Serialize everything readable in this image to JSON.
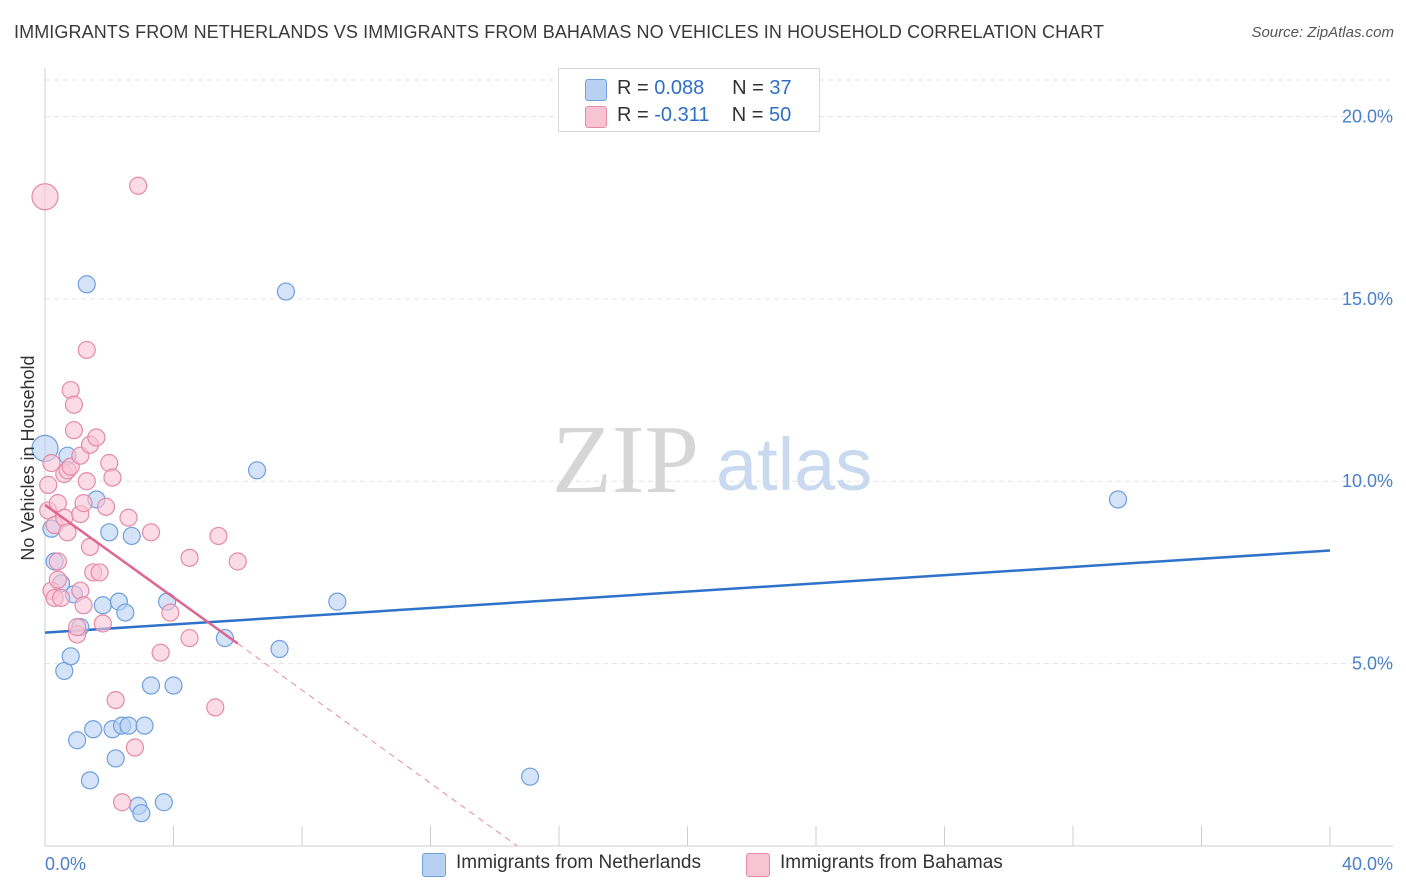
{
  "title": "IMMIGRANTS FROM NETHERLANDS VS IMMIGRANTS FROM BAHAMAS NO VEHICLES IN HOUSEHOLD CORRELATION CHART",
  "source": "Source: ZipAtlas.com",
  "watermark": {
    "zip": "ZIP",
    "atlas": "atlas"
  },
  "legend": {
    "r_label": "R =",
    "n_label": "N =",
    "series": [
      {
        "r": "0.088",
        "n": "37"
      },
      {
        "r": "-0.311",
        "n": "50"
      }
    ]
  },
  "colors": {
    "netherlands_fill": "#b8d1f3",
    "netherlands_stroke": "#6f9fdd",
    "netherlands_line": "#2f72c9",
    "bahamas_fill": "#f8c3d3",
    "bahamas_stroke": "#e58aa8",
    "bahamas_line": "#e0668f",
    "tick_text": "#4a7fc9"
  },
  "chart_data": {
    "type": "scatter",
    "title": "IMMIGRANTS FROM NETHERLANDS VS IMMIGRANTS FROM BAHAMAS NO VEHICLES IN HOUSEHOLD CORRELATION CHART",
    "xlabel": "",
    "ylabel": "No Vehicles in Household",
    "xlim": [
      0,
      40
    ],
    "ylim": [
      0,
      20
    ],
    "x_tick_labels": [
      "0.0%",
      "40.0%"
    ],
    "y_ticks": [
      5,
      10,
      15,
      20
    ],
    "y_tick_labels": [
      "5.0%",
      "10.0%",
      "15.0%",
      "20.0%"
    ],
    "grid": true,
    "legend_position": "top-center",
    "series": [
      {
        "name": "Immigrants from Netherlands",
        "points": [
          [
            0.0,
            10.9
          ],
          [
            0.2,
            8.7
          ],
          [
            0.3,
            7.8
          ],
          [
            0.5,
            7.2
          ],
          [
            0.6,
            4.8
          ],
          [
            0.7,
            10.7
          ],
          [
            0.8,
            5.2
          ],
          [
            0.9,
            6.9
          ],
          [
            1.1,
            6.0
          ],
          [
            1.0,
            2.9
          ],
          [
            1.3,
            15.4
          ],
          [
            1.4,
            1.8
          ],
          [
            1.5,
            3.2
          ],
          [
            1.6,
            9.5
          ],
          [
            1.8,
            6.6
          ],
          [
            2.0,
            8.6
          ],
          [
            2.1,
            3.2
          ],
          [
            2.2,
            2.4
          ],
          [
            2.3,
            6.7
          ],
          [
            2.4,
            3.3
          ],
          [
            2.5,
            6.4
          ],
          [
            2.6,
            3.3
          ],
          [
            2.7,
            8.5
          ],
          [
            2.9,
            1.1
          ],
          [
            3.0,
            0.9
          ],
          [
            3.1,
            3.3
          ],
          [
            3.3,
            4.4
          ],
          [
            3.7,
            1.2
          ],
          [
            3.8,
            6.7
          ],
          [
            4.0,
            4.4
          ],
          [
            5.6,
            5.7
          ],
          [
            6.6,
            10.3
          ],
          [
            7.3,
            5.4
          ],
          [
            7.5,
            15.2
          ],
          [
            9.1,
            6.7
          ],
          [
            15.1,
            1.9
          ],
          [
            33.4,
            9.5
          ]
        ]
      },
      {
        "name": "Immigrants from Bahamas",
        "points": [
          [
            0.0,
            17.8
          ],
          [
            0.1,
            9.9
          ],
          [
            0.1,
            9.2
          ],
          [
            0.2,
            10.5
          ],
          [
            0.2,
            7.0
          ],
          [
            0.3,
            6.8
          ],
          [
            0.3,
            8.8
          ],
          [
            0.4,
            7.3
          ],
          [
            0.4,
            9.4
          ],
          [
            0.4,
            7.8
          ],
          [
            0.5,
            6.8
          ],
          [
            0.6,
            10.2
          ],
          [
            0.6,
            9.0
          ],
          [
            0.7,
            10.3
          ],
          [
            0.7,
            8.6
          ],
          [
            0.8,
            12.5
          ],
          [
            0.8,
            10.4
          ],
          [
            0.9,
            12.1
          ],
          [
            0.9,
            11.4
          ],
          [
            1.0,
            5.8
          ],
          [
            1.0,
            6.0
          ],
          [
            1.1,
            10.7
          ],
          [
            1.1,
            9.1
          ],
          [
            1.1,
            7.0
          ],
          [
            1.2,
            6.6
          ],
          [
            1.2,
            9.4
          ],
          [
            1.3,
            13.6
          ],
          [
            1.3,
            10.0
          ],
          [
            1.4,
            11.0
          ],
          [
            1.4,
            8.2
          ],
          [
            1.5,
            7.5
          ],
          [
            1.6,
            11.2
          ],
          [
            1.7,
            7.5
          ],
          [
            1.8,
            6.1
          ],
          [
            1.9,
            9.3
          ],
          [
            2.0,
            10.5
          ],
          [
            2.1,
            10.1
          ],
          [
            2.2,
            4.0
          ],
          [
            2.4,
            1.2
          ],
          [
            2.6,
            9.0
          ],
          [
            2.8,
            2.7
          ],
          [
            2.9,
            18.1
          ],
          [
            3.3,
            8.6
          ],
          [
            3.6,
            5.3
          ],
          [
            3.9,
            6.4
          ],
          [
            4.5,
            5.7
          ],
          [
            4.5,
            7.9
          ],
          [
            5.3,
            3.8
          ],
          [
            5.4,
            8.5
          ],
          [
            6.0,
            7.8
          ]
        ]
      }
    ],
    "trend_lines": [
      {
        "series": "Immigrants from Netherlands",
        "from": [
          0,
          5.85
        ],
        "to": [
          40,
          8.1
        ]
      },
      {
        "series": "Immigrants from Bahamas",
        "from": [
          0,
          9.35
        ],
        "to": [
          6.0,
          5.55
        ],
        "dashed_extension_to": [
          14.7,
          0
        ]
      }
    ]
  }
}
